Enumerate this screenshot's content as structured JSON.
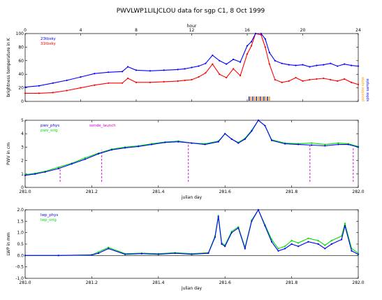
{
  "page_title": "PWVLWP1LILJCLOU data for sgp C1, 8 Oct 1999",
  "chart_data": [
    {
      "id": "brightness",
      "type": "line",
      "x_label": "hour",
      "xlim": [
        0,
        24
      ],
      "x_ticks": [
        0,
        4,
        8,
        12,
        16,
        20,
        24
      ],
      "ylabel": "brightness temperature in K",
      "ylim": [
        0,
        100
      ],
      "y_ticks": [
        0,
        20,
        40,
        60,
        80,
        100
      ],
      "grid": false,
      "legend_position": "top-left",
      "series": [
        {
          "name": "23tbsky",
          "color": "#0000ff",
          "x": [
            0,
            1,
            2,
            3,
            4,
            5,
            6,
            7,
            7.4,
            8,
            9,
            10,
            11,
            11.5,
            12,
            12.5,
            13,
            13.5,
            14,
            14.5,
            15,
            15.5,
            16,
            16.3,
            16.6,
            17,
            17.3,
            17.6,
            18,
            18.5,
            19,
            19.5,
            20,
            20.5,
            21,
            21.5,
            22,
            22.5,
            23,
            23.5,
            24
          ],
          "values": [
            21,
            23,
            27,
            31,
            36,
            41,
            43,
            44,
            51,
            46,
            45,
            46,
            47,
            48,
            50,
            52,
            56,
            68,
            60,
            55,
            62,
            58,
            82,
            88,
            100,
            100,
            92,
            72,
            60,
            56,
            54,
            53,
            54,
            51,
            53,
            54,
            56,
            52,
            55,
            53,
            52
          ]
        },
        {
          "name": "31tbsky",
          "color": "#ff0000",
          "x": [
            0,
            1,
            2,
            3,
            4,
            5,
            6,
            7,
            7.4,
            8,
            9,
            10,
            11,
            11.5,
            12,
            12.5,
            13,
            13.5,
            14,
            14.5,
            15,
            15.5,
            16,
            16.3,
            16.6,
            17,
            17.3,
            17.6,
            18,
            18.5,
            19,
            19.5,
            20,
            20.5,
            21,
            21.5,
            22,
            22.5,
            23,
            23.5,
            24
          ],
          "values": [
            12,
            12,
            13,
            16,
            20,
            24,
            27,
            27,
            34,
            28,
            28,
            29,
            30,
            31,
            32,
            36,
            42,
            55,
            40,
            35,
            48,
            38,
            70,
            82,
            100,
            98,
            80,
            55,
            32,
            28,
            30,
            35,
            30,
            32,
            33,
            34,
            32,
            30,
            33,
            28,
            25
          ]
        }
      ],
      "side_labels": [
        "possible spike",
        "spike sample"
      ],
      "flag_segment_hours": [
        16.1,
        17.7
      ]
    },
    {
      "id": "pwv",
      "type": "line",
      "xlabel": "julian day",
      "xlim": [
        281.0,
        282.0
      ],
      "x_ticks": [
        "281.0",
        "281.2",
        "281.4",
        "281.6",
        "281.8",
        "282.0"
      ],
      "ylabel": "PWV in cm",
      "ylim": [
        0,
        5
      ],
      "y_ticks": [
        0,
        1,
        2,
        3,
        4,
        5
      ],
      "grid": false,
      "legend_position": "top-left",
      "series": [
        {
          "name": "pwv_phys",
          "color": "#0000ff",
          "x": [
            281.0,
            281.03,
            281.06,
            281.1,
            281.14,
            281.18,
            281.22,
            281.26,
            281.3,
            281.34,
            281.38,
            281.42,
            281.46,
            281.5,
            281.54,
            281.58,
            281.6,
            281.62,
            281.64,
            281.66,
            281.68,
            281.7,
            281.72,
            281.74,
            281.78,
            281.82,
            281.86,
            281.9,
            281.94,
            281.97,
            282.0
          ],
          "values": [
            0.9,
            1.0,
            1.15,
            1.4,
            1.75,
            2.1,
            2.5,
            2.8,
            2.95,
            3.05,
            3.2,
            3.35,
            3.4,
            3.3,
            3.2,
            3.4,
            4.0,
            3.6,
            3.3,
            3.6,
            4.2,
            5.0,
            4.6,
            3.5,
            3.25,
            3.2,
            3.15,
            3.1,
            3.2,
            3.2,
            3.0
          ]
        },
        {
          "name": "pwv_orig",
          "color": "#00dd00",
          "x": [
            281.0,
            281.03,
            281.06,
            281.1,
            281.14,
            281.18,
            281.22,
            281.26,
            281.3,
            281.34,
            281.38,
            281.42,
            281.46,
            281.5,
            281.54,
            281.58,
            281.6,
            281.62,
            281.64,
            281.66,
            281.68,
            281.7,
            281.72,
            281.74,
            281.78,
            281.82,
            281.86,
            281.9,
            281.94,
            281.97,
            282.0
          ],
          "values": [
            0.95,
            1.05,
            1.2,
            1.5,
            1.8,
            2.2,
            2.55,
            2.85,
            3.0,
            3.1,
            3.25,
            3.38,
            3.45,
            3.3,
            3.25,
            3.45,
            4.0,
            3.6,
            3.35,
            3.65,
            4.25,
            5.0,
            4.6,
            3.55,
            3.3,
            3.25,
            3.3,
            3.2,
            3.3,
            3.25,
            3.05
          ]
        }
      ],
      "sonde_launch": {
        "name": "sonde_launch",
        "color": "#cc00cc",
        "x": [
          281.105,
          281.23,
          281.49,
          281.855,
          281.985
        ],
        "values": [
          1.5,
          2.8,
          3.3,
          3.2,
          3.0
        ]
      }
    },
    {
      "id": "lwp",
      "type": "line",
      "xlabel": "julian day",
      "xlim": [
        281.0,
        282.0
      ],
      "x_ticks": [
        "281.0",
        "281.2",
        "281.4",
        "281.6",
        "281.8",
        "282.0"
      ],
      "ylabel": "LWP in mm",
      "ylim": [
        -1.0,
        2.0
      ],
      "y_ticks": [
        "-1.0",
        "-0.5",
        "0.0",
        "0.5",
        "1.0",
        "1.5",
        "2.0"
      ],
      "grid": false,
      "legend_position": "top-left",
      "series": [
        {
          "name": "lwp_phys",
          "color": "#0000ff",
          "x": [
            281.0,
            281.1,
            281.2,
            281.22,
            281.25,
            281.3,
            281.35,
            281.4,
            281.45,
            281.5,
            281.55,
            281.57,
            281.58,
            281.59,
            281.6,
            281.62,
            281.64,
            281.66,
            281.68,
            281.7,
            281.72,
            281.74,
            281.76,
            281.78,
            281.8,
            281.82,
            281.85,
            281.88,
            281.9,
            281.92,
            281.95,
            281.96,
            281.98,
            282.0
          ],
          "values": [
            0.0,
            0.0,
            0.02,
            0.1,
            0.3,
            0.05,
            0.08,
            0.05,
            0.1,
            0.05,
            0.1,
            0.8,
            1.7,
            0.5,
            0.4,
            1.0,
            1.2,
            0.3,
            1.5,
            2.0,
            1.3,
            0.6,
            0.2,
            0.3,
            0.5,
            0.4,
            0.6,
            0.5,
            0.3,
            0.5,
            0.7,
            1.3,
            0.2,
            0.05
          ]
        },
        {
          "name": "lwp_orig",
          "color": "#00dd00",
          "x": [
            281.0,
            281.1,
            281.2,
            281.22,
            281.25,
            281.3,
            281.35,
            281.4,
            281.45,
            281.5,
            281.55,
            281.57,
            281.58,
            281.59,
            281.6,
            281.62,
            281.64,
            281.66,
            281.68,
            281.7,
            281.72,
            281.74,
            281.76,
            281.78,
            281.8,
            281.82,
            281.85,
            281.88,
            281.9,
            281.92,
            281.95,
            281.96,
            281.98,
            282.0
          ],
          "values": [
            0.0,
            0.0,
            0.03,
            0.15,
            0.35,
            0.08,
            0.1,
            0.08,
            0.12,
            0.08,
            0.12,
            0.85,
            1.75,
            0.55,
            0.45,
            1.05,
            1.25,
            0.35,
            1.55,
            2.0,
            1.35,
            0.7,
            0.3,
            0.4,
            0.65,
            0.55,
            0.75,
            0.65,
            0.45,
            0.65,
            0.85,
            1.4,
            0.3,
            0.1
          ]
        }
      ]
    }
  ]
}
